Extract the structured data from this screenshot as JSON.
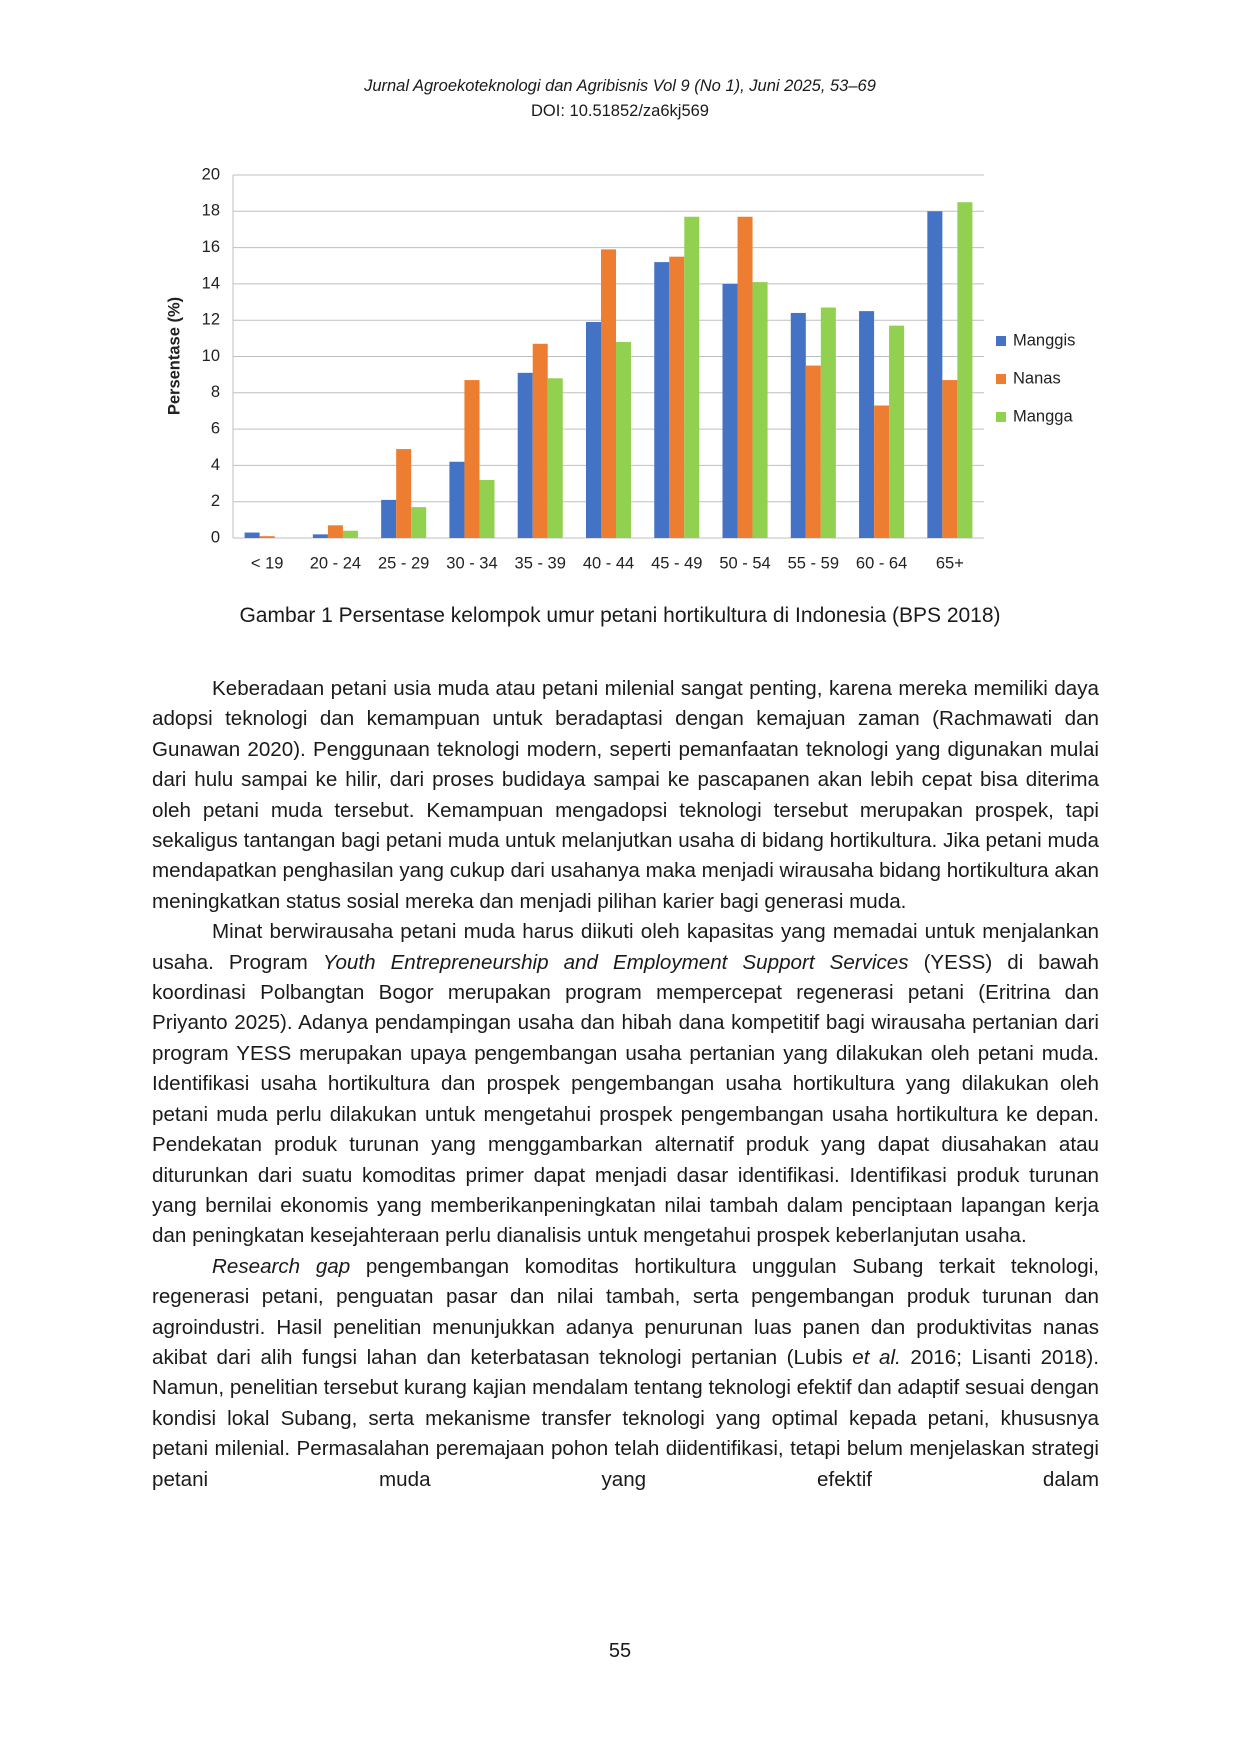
{
  "header": {
    "journal": "Jurnal Agroekoteknologi dan Agribisnis Vol 9 (No 1), Juni 2025, 53–69",
    "doi": "DOI: 10.51852/za6kj569"
  },
  "chart_data": {
    "type": "bar",
    "ylabel": "Persentase (%)",
    "categories": [
      "< 19",
      "20 - 24",
      "25 - 29",
      "30 - 34",
      "35 - 39",
      "40 - 44",
      "45 - 49",
      "50 - 54",
      "55 - 59",
      "60 - 64",
      "65+"
    ],
    "series": [
      {
        "name": "Manggis",
        "color": "#4472c4",
        "values": [
          0.3,
          0.2,
          2.1,
          4.2,
          9.1,
          11.9,
          15.2,
          14.0,
          12.4,
          12.5,
          18.0
        ]
      },
      {
        "name": "Nanas",
        "color": "#ed7d31",
        "values": [
          0.1,
          0.7,
          4.9,
          8.7,
          10.7,
          15.9,
          15.5,
          17.7,
          9.5,
          7.3,
          8.7
        ]
      },
      {
        "name": "Mangga",
        "color": "#92d050",
        "values": [
          0,
          0.4,
          1.7,
          3.2,
          8.8,
          10.8,
          17.7,
          14.1,
          12.7,
          11.7,
          18.5
        ]
      }
    ],
    "ylim": [
      0,
      20
    ],
    "yticks": [
      0,
      2,
      4,
      6,
      8,
      10,
      12,
      14,
      16,
      18,
      20
    ],
    "grid": true,
    "legend": "right"
  },
  "caption": "Gambar  1 Persentase kelompok umur petani hortikultura di Indonesia (BPS 2018)",
  "body": {
    "paragraphs": [
      [
        "Keberadaan petani usia muda atau petani milenial sangat penting, karena mereka memiliki daya adopsi teknologi dan kemampuan untuk beradaptasi dengan kemajuan zaman (Rachmawati dan Gunawan 2020).  Penggunaan teknologi modern, seperti pemanfaatan teknologi yang digunakan mulai dari hulu sampai ke hilir, dari proses budidaya sampai ke pascapanen akan lebih cepat bisa diterima oleh petani muda tersebut.  Kemampuan mengadopsi teknologi tersebut merupakan prospek, tapi sekaligus tantangan bagi petani muda untuk melanjutkan usaha di bidang hortikultura. Jika petani muda mendapatkan penghasilan yang cukup dari usahanya maka menjadi wirausaha bidang hortikultura akan meningkatkan status sosial mereka dan menjadi pilihan karier bagi generasi muda."
      ],
      [
        "Minat berwirausaha petani muda harus diikuti oleh kapasitas yang memadai untuk menjalankan usaha.  Program ",
        {
          "text": "Youth Entrepreneurship and Employment Support Services",
          "italic": true
        },
        " (YESS) di bawah koordinasi Polbangtan Bogor merupakan program mempercepat regenerasi petani (Eritrina dan Priyanto 2025). Adanya pendampingan usaha dan hibah dana kompetitif bagi wirausaha pertanian dari program YESS merupakan upaya pengembangan usaha pertanian yang dilakukan oleh petani muda. Identifikasi usaha hortikultura dan prospek pengembangan usaha hortikultura yang dilakukan oleh petani muda perlu dilakukan untuk mengetahui prospek pengembangan usaha hortikultura ke depan. Pendekatan produk turunan yang menggambarkan alternatif produk yang dapat diusahakan atau diturunkan dari suatu komoditas primer dapat menjadi dasar identifikasi. Identifikasi produk turunan yang bernilai ekonomis yang memberikanpeningkatan nilai tambah dalam penciptaan lapangan kerja dan peningkatan kesejahteraan perlu dianalisis untuk mengetahui prospek keberlanjutan usaha."
      ],
      [
        {
          "text": "Research gap",
          "italic": true
        },
        " pengembangan komoditas hortikultura unggulan Subang terkait teknologi, regenerasi petani, penguatan pasar dan nilai tambah, serta pengembangan produk turunan dan agroindustri.  Hasil penelitian menunjukkan adanya penurunan luas panen dan produktivitas nanas akibat dari alih fungsi lahan dan keterbatasan teknologi pertanian (Lubis ",
        {
          "text": "et al.",
          "italic": true
        },
        " 2016; Lisanti 2018).  Namun, penelitian tersebut kurang kajian mendalam tentang teknologi efektif dan adaptif sesuai dengan kondisi lokal Subang, serta mekanisme transfer teknologi yang optimal kepada petani, khususnya petani milenial.  Permasalahan peremajaan pohon telah diidentifikasi, tetapi belum menjelaskan strategi petani muda yang efektif dalam"
      ]
    ]
  },
  "page_number": "55"
}
